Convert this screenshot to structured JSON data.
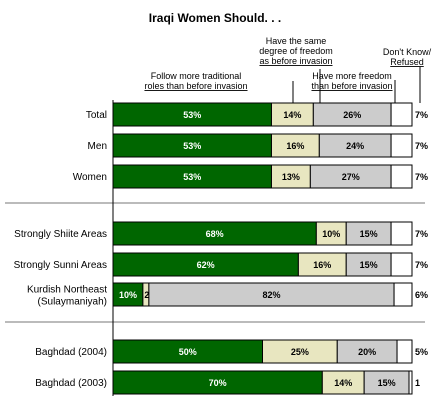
{
  "chart_data": {
    "type": "bar",
    "stacked": true,
    "orientation": "horizontal",
    "title": "Iraqi Women Should. . .",
    "series": [
      {
        "name": "Follow more traditional roles than before invasion",
        "color": "#006600"
      },
      {
        "name": "Have the same degree of freedom as before invasion",
        "color": "#e8e6c0"
      },
      {
        "name": "Have more freedom than before invasion",
        "color": "#cccccc"
      },
      {
        "name": "Don't Know/ Refused",
        "color": "#ffffff"
      }
    ],
    "groups": [
      {
        "rows": [
          {
            "label": [
              "Total"
            ],
            "values": [
              53,
              14,
              26,
              7
            ],
            "labels": [
              "53%",
              "14%",
              "26%",
              "7%"
            ]
          },
          {
            "label": [
              "Men"
            ],
            "values": [
              53,
              16,
              24,
              7
            ],
            "labels": [
              "53%",
              "16%",
              "24%",
              "7%"
            ]
          },
          {
            "label": [
              "Women"
            ],
            "values": [
              53,
              13,
              27,
              7
            ],
            "labels": [
              "53%",
              "13%",
              "27%",
              "7%"
            ]
          }
        ]
      },
      {
        "rows": [
          {
            "label": [
              "Strongly Shiite Areas"
            ],
            "values": [
              68,
              10,
              15,
              7
            ],
            "labels": [
              "68%",
              "10%",
              "15%",
              "7%"
            ]
          },
          {
            "label": [
              "Strongly Sunni Areas"
            ],
            "values": [
              62,
              16,
              15,
              7
            ],
            "labels": [
              "62%",
              "16%",
              "15%",
              "7%"
            ]
          },
          {
            "label": [
              "Kurdish Northeast",
              "(Sulaymaniyah)"
            ],
            "values": [
              10,
              2,
              82,
              6
            ],
            "labels": [
              "10%",
              "2",
              "82%",
              "6%"
            ]
          }
        ]
      },
      {
        "rows": [
          {
            "label": [
              "Baghdad (2004)"
            ],
            "values": [
              50,
              25,
              20,
              5
            ],
            "labels": [
              "50%",
              "25%",
              "20%",
              "5%"
            ]
          },
          {
            "label": [
              "Baghdad (2003)"
            ],
            "values": [
              70,
              14,
              15,
              1
            ],
            "labels": [
              "70%",
              "14%",
              "15%",
              "1"
            ]
          }
        ]
      }
    ]
  }
}
